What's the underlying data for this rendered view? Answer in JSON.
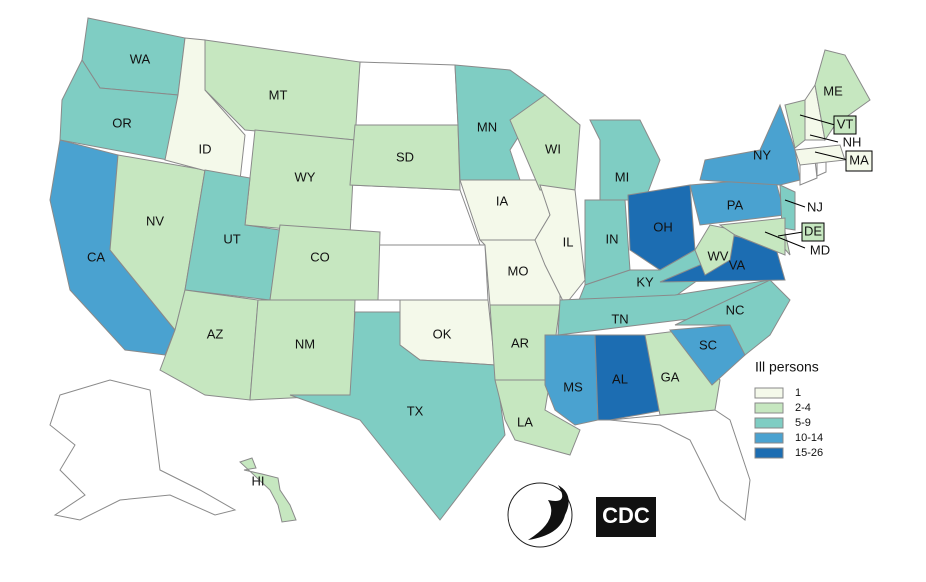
{
  "map": {
    "legend": {
      "title": "Ill persons",
      "items": [
        {
          "label": "1",
          "color": "#f4f9ea"
        },
        {
          "label": "2-4",
          "color": "#c6e7c0"
        },
        {
          "label": "5-9",
          "color": "#7fcdc3"
        },
        {
          "label": "10-14",
          "color": "#4aa2d0"
        },
        {
          "label": "15-26",
          "color": "#1c6db2"
        }
      ]
    },
    "states": [
      {
        "label": "WA",
        "bin": 2
      },
      {
        "label": "OR",
        "bin": 2
      },
      {
        "label": "CA",
        "bin": 3
      },
      {
        "label": "NV",
        "bin": 1
      },
      {
        "label": "ID",
        "bin": 0
      },
      {
        "label": "MT",
        "bin": 1
      },
      {
        "label": "WY",
        "bin": 1
      },
      {
        "label": "UT",
        "bin": 2
      },
      {
        "label": "CO",
        "bin": 1
      },
      {
        "label": "AZ",
        "bin": 1
      },
      {
        "label": "NM",
        "bin": 1
      },
      {
        "label": "SD",
        "bin": 1
      },
      {
        "label": "OK",
        "bin": 0
      },
      {
        "label": "TX",
        "bin": 2
      },
      {
        "label": "MN",
        "bin": 2
      },
      {
        "label": "IA",
        "bin": 0
      },
      {
        "label": "MO",
        "bin": 0
      },
      {
        "label": "AR",
        "bin": 1
      },
      {
        "label": "LA",
        "bin": 1
      },
      {
        "label": "WI",
        "bin": 1
      },
      {
        "label": "IL",
        "bin": 0
      },
      {
        "label": "MI",
        "bin": 2
      },
      {
        "label": "IN",
        "bin": 2
      },
      {
        "label": "OH",
        "bin": 4
      },
      {
        "label": "KY",
        "bin": 2
      },
      {
        "label": "TN",
        "bin": 2
      },
      {
        "label": "MS",
        "bin": 3
      },
      {
        "label": "AL",
        "bin": 4
      },
      {
        "label": "GA",
        "bin": 1
      },
      {
        "label": "SC",
        "bin": 3
      },
      {
        "label": "NC",
        "bin": 2
      },
      {
        "label": "VA",
        "bin": 4
      },
      {
        "label": "WV",
        "bin": 1
      },
      {
        "label": "PA",
        "bin": 3
      },
      {
        "label": "NY",
        "bin": 3
      },
      {
        "label": "NJ",
        "bin": 2
      },
      {
        "label": "DE",
        "bin": 1
      },
      {
        "label": "MD",
        "bin": 1
      },
      {
        "label": "VT",
        "bin": 1
      },
      {
        "label": "NH",
        "bin": 0
      },
      {
        "label": "MA",
        "bin": 0
      },
      {
        "label": "ME",
        "bin": 1
      },
      {
        "label": "HI",
        "bin": 1
      }
    ],
    "logo_text": "CDC"
  }
}
